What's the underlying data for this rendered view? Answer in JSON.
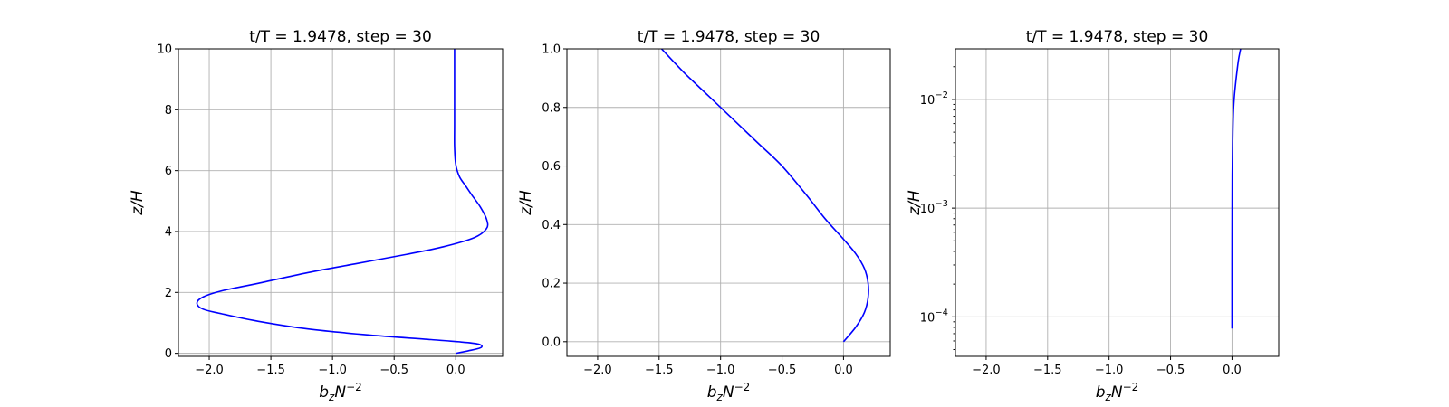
{
  "colors": {
    "line": "#0000ff",
    "grid": "#b0b0b0",
    "axes": "#000000"
  },
  "chart_data": [
    {
      "type": "line",
      "title": "t/T = 1.9478, step = 30",
      "xlabel": "b_z N^{-2}",
      "ylabel": "z/H",
      "xlim": [
        -2.25,
        0.38
      ],
      "ylim": [
        -0.1,
        10
      ],
      "yscale": "linear",
      "grid": true,
      "xticks": [
        -2.0,
        -1.5,
        -1.0,
        -0.5,
        0.0
      ],
      "xtick_labels": [
        "−2.0",
        "−1.5",
        "−1.0",
        "−0.5",
        "0.0"
      ],
      "yticks": [
        0,
        2,
        4,
        6,
        8,
        10
      ],
      "ytick_labels": [
        "0",
        "2",
        "4",
        "6",
        "8",
        "10"
      ],
      "series": [
        {
          "x": [
            0.0,
            0.1,
            0.2,
            0.2,
            0.1,
            -0.2,
            -0.7,
            -1.2,
            -1.6,
            -1.9,
            -2.05,
            -2.1,
            -2.05,
            -1.9,
            -1.6,
            -1.2,
            -0.8,
            -0.4,
            -0.1,
            0.15,
            0.25,
            0.25,
            0.2,
            0.13,
            0.08,
            0.03,
            0.0,
            -0.01,
            -0.01,
            -0.01,
            -0.01,
            -0.01
          ],
          "y": [
            0.0,
            0.08,
            0.18,
            0.28,
            0.35,
            0.45,
            0.6,
            0.8,
            1.05,
            1.3,
            1.45,
            1.65,
            1.85,
            2.05,
            2.3,
            2.65,
            2.95,
            3.25,
            3.5,
            3.8,
            4.1,
            4.4,
            4.8,
            5.2,
            5.5,
            5.8,
            6.2,
            6.8,
            7.5,
            8.3,
            9.2,
            10.0
          ]
        }
      ]
    },
    {
      "type": "line",
      "title": "t/T = 1.9478, step = 30",
      "xlabel": "b_z N^{-2}",
      "ylabel": "z/H",
      "xlim": [
        -2.25,
        0.38
      ],
      "ylim": [
        -0.05,
        1.0
      ],
      "yscale": "linear",
      "grid": true,
      "xticks": [
        -2.0,
        -1.5,
        -1.0,
        -0.5,
        0.0
      ],
      "xtick_labels": [
        "−2.0",
        "−1.5",
        "−1.0",
        "−0.5",
        "0.0"
      ],
      "yticks": [
        0.0,
        0.2,
        0.4,
        0.6,
        0.8,
        1.0
      ],
      "ytick_labels": [
        "0.0",
        "0.2",
        "0.4",
        "0.6",
        "0.8",
        "1.0"
      ],
      "series": [
        {
          "x": [
            0.0,
            0.1,
            0.17,
            0.2,
            0.2,
            0.17,
            0.1,
            0.0,
            -0.15,
            -0.3,
            -0.5,
            -0.7,
            -0.9,
            -1.1,
            -1.3,
            -1.48
          ],
          "y": [
            0.0,
            0.05,
            0.1,
            0.15,
            0.2,
            0.25,
            0.3,
            0.35,
            0.42,
            0.5,
            0.6,
            0.68,
            0.76,
            0.84,
            0.92,
            1.0
          ]
        }
      ]
    },
    {
      "type": "line",
      "title": "t/T = 1.9478, step = 30",
      "xlabel": "b_z N^{-2}",
      "ylabel": "z/H",
      "xlim": [
        -2.25,
        0.38
      ],
      "ylim": [
        4.33e-05,
        0.0292
      ],
      "yscale": "log",
      "grid": true,
      "xticks": [
        -2.0,
        -1.5,
        -1.0,
        -0.5,
        0.0
      ],
      "xtick_labels": [
        "−2.0",
        "−1.5",
        "−1.0",
        "−0.5",
        "0.0"
      ],
      "yticks_major": [
        0.0001,
        0.001,
        0.01
      ],
      "ytick_exponents": [
        "−4",
        "−3",
        "−2"
      ],
      "series": [
        {
          "x": [
            0.0,
            0.0,
            0.0,
            0.001,
            0.002,
            0.004,
            0.007,
            0.012,
            0.02,
            0.032,
            0.045,
            0.055,
            0.07
          ],
          "y": [
            7.8e-05,
            0.0001,
            0.0003,
            0.001,
            0.002,
            0.003,
            0.005,
            0.008,
            0.011,
            0.015,
            0.02,
            0.024,
            0.0292
          ]
        }
      ]
    }
  ]
}
